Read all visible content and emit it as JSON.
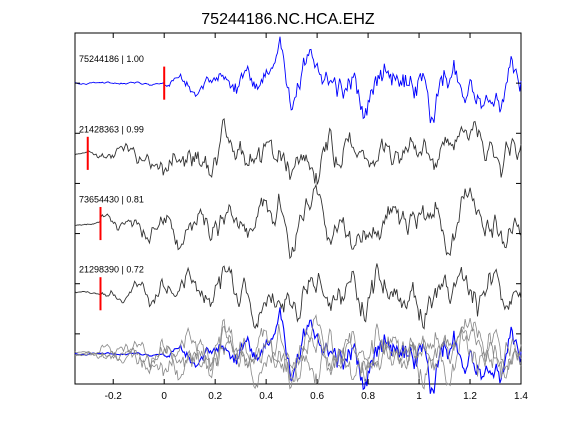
{
  "chart_data": {
    "type": "line",
    "title": "75244186.NC.HCA.EHZ",
    "xlabel": "",
    "ylabel": "",
    "xlim": [
      -0.35,
      1.4
    ],
    "ylim": [
      0,
      7
    ],
    "x_ticks": [
      -0.2,
      0,
      0.2,
      0.4,
      0.6,
      0.8,
      1,
      1.2,
      1.4
    ],
    "x_tick_labels": [
      "-0.2",
      "0",
      "0.2",
      "0.4",
      "0.6",
      "0.8",
      "1",
      "1.2",
      "1.4"
    ],
    "grid": false,
    "legend": "none",
    "traces": [
      {
        "label": "75244186 | 1.00",
        "pick_time": 0.0,
        "color": "#0000ff",
        "baseline": 6,
        "amp": 0.55
      },
      {
        "label": "21428363 | 0.99",
        "pick_time": -0.3,
        "color": "#333333",
        "baseline": 4.6,
        "amp": 0.55
      },
      {
        "label": "73654430 | 0.81",
        "pick_time": -0.25,
        "color": "#333333",
        "baseline": 3.2,
        "amp": 0.55
      },
      {
        "label": "21298390 | 0.72",
        "pick_time": -0.25,
        "color": "#333333",
        "baseline": 1.8,
        "amp": 0.55
      }
    ],
    "stack_baseline": 0.6,
    "pick_color": "#ff0000"
  }
}
